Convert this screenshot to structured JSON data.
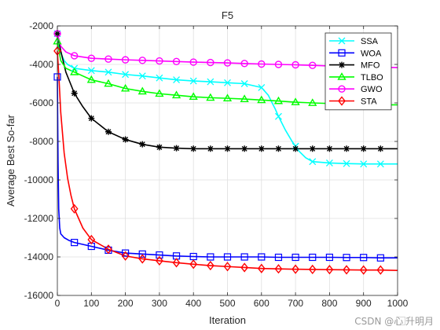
{
  "chart_data": {
    "type": "line",
    "title": "F5",
    "xlabel": "Iteration",
    "ylabel": "Average Best So-far",
    "xlim": [
      0,
      1000
    ],
    "ylim": [
      -16000,
      -2000
    ],
    "xticks": [
      0,
      100,
      200,
      300,
      400,
      500,
      600,
      700,
      800,
      900,
      1000
    ],
    "yticks": [
      -2000,
      -4000,
      -6000,
      -8000,
      -10000,
      -12000,
      -14000,
      -16000
    ],
    "grid": true,
    "legend_position": "top-right",
    "marker_interval": 50,
    "series": [
      {
        "name": "SSA",
        "color": "#00ffff",
        "marker": "x",
        "points": [
          [
            0,
            -2400
          ],
          [
            5,
            -3000
          ],
          [
            10,
            -3400
          ],
          [
            20,
            -3800
          ],
          [
            30,
            -4000
          ],
          [
            50,
            -4200
          ],
          [
            100,
            -4320
          ],
          [
            150,
            -4400
          ],
          [
            200,
            -4520
          ],
          [
            250,
            -4600
          ],
          [
            300,
            -4700
          ],
          [
            350,
            -4800
          ],
          [
            400,
            -4860
          ],
          [
            450,
            -4900
          ],
          [
            500,
            -4950
          ],
          [
            550,
            -5000
          ],
          [
            600,
            -5200
          ],
          [
            620,
            -5600
          ],
          [
            640,
            -6300
          ],
          [
            650,
            -6700
          ],
          [
            670,
            -7400
          ],
          [
            690,
            -8000
          ],
          [
            710,
            -8500
          ],
          [
            730,
            -8850
          ],
          [
            750,
            -9050
          ],
          [
            800,
            -9120
          ],
          [
            850,
            -9150
          ],
          [
            900,
            -9170
          ],
          [
            950,
            -9170
          ],
          [
            1000,
            -9170
          ]
        ]
      },
      {
        "name": "WOA",
        "color": "#0000ff",
        "marker": "square",
        "points": [
          [
            0,
            -4650
          ],
          [
            2,
            -9000
          ],
          [
            4,
            -11500
          ],
          [
            7,
            -12500
          ],
          [
            10,
            -12800
          ],
          [
            20,
            -13000
          ],
          [
            35,
            -13150
          ],
          [
            50,
            -13250
          ],
          [
            100,
            -13450
          ],
          [
            150,
            -13650
          ],
          [
            200,
            -13800
          ],
          [
            250,
            -13850
          ],
          [
            300,
            -13900
          ],
          [
            350,
            -13950
          ],
          [
            400,
            -13980
          ],
          [
            450,
            -14000
          ],
          [
            500,
            -14000
          ],
          [
            550,
            -14000
          ],
          [
            600,
            -14000
          ],
          [
            650,
            -14020
          ],
          [
            700,
            -14020
          ],
          [
            750,
            -14020
          ],
          [
            800,
            -14020
          ],
          [
            850,
            -14030
          ],
          [
            900,
            -14030
          ],
          [
            950,
            -14050
          ],
          [
            1000,
            -14050
          ]
        ]
      },
      {
        "name": "MFO",
        "color": "#000000",
        "marker": "asterisk",
        "points": [
          [
            0,
            -2400
          ],
          [
            10,
            -3300
          ],
          [
            25,
            -4400
          ],
          [
            50,
            -5500
          ],
          [
            75,
            -6200
          ],
          [
            100,
            -6800
          ],
          [
            150,
            -7500
          ],
          [
            200,
            -7900
          ],
          [
            250,
            -8150
          ],
          [
            300,
            -8300
          ],
          [
            350,
            -8350
          ],
          [
            400,
            -8380
          ],
          [
            450,
            -8380
          ],
          [
            500,
            -8380
          ],
          [
            550,
            -8380
          ],
          [
            600,
            -8380
          ],
          [
            650,
            -8380
          ],
          [
            700,
            -8380
          ],
          [
            750,
            -8380
          ],
          [
            800,
            -8380
          ],
          [
            850,
            -8380
          ],
          [
            900,
            -8380
          ],
          [
            950,
            -8380
          ],
          [
            1000,
            -8380
          ]
        ]
      },
      {
        "name": "TLBO",
        "color": "#00ff00",
        "marker": "triangle",
        "points": [
          [
            0,
            -2800
          ],
          [
            10,
            -3800
          ],
          [
            25,
            -4200
          ],
          [
            50,
            -4400
          ],
          [
            100,
            -4800
          ],
          [
            150,
            -5000
          ],
          [
            200,
            -5250
          ],
          [
            250,
            -5400
          ],
          [
            300,
            -5520
          ],
          [
            350,
            -5600
          ],
          [
            400,
            -5680
          ],
          [
            450,
            -5730
          ],
          [
            500,
            -5760
          ],
          [
            550,
            -5800
          ],
          [
            600,
            -5850
          ],
          [
            650,
            -5900
          ],
          [
            700,
            -5960
          ],
          [
            750,
            -6000
          ],
          [
            800,
            -6030
          ],
          [
            850,
            -6060
          ],
          [
            900,
            -6080
          ],
          [
            950,
            -6100
          ],
          [
            1000,
            -6100
          ]
        ]
      },
      {
        "name": "GWO",
        "color": "#ff00ff",
        "marker": "circle",
        "points": [
          [
            0,
            -2400
          ],
          [
            10,
            -3050
          ],
          [
            25,
            -3350
          ],
          [
            50,
            -3550
          ],
          [
            100,
            -3680
          ],
          [
            150,
            -3720
          ],
          [
            200,
            -3760
          ],
          [
            250,
            -3790
          ],
          [
            300,
            -3820
          ],
          [
            350,
            -3850
          ],
          [
            400,
            -3880
          ],
          [
            450,
            -3900
          ],
          [
            500,
            -3920
          ],
          [
            550,
            -3950
          ],
          [
            600,
            -3980
          ],
          [
            650,
            -4000
          ],
          [
            700,
            -4020
          ],
          [
            750,
            -4050
          ],
          [
            800,
            -4080
          ],
          [
            850,
            -4100
          ],
          [
            900,
            -4130
          ],
          [
            950,
            -4150
          ],
          [
            1000,
            -4160
          ]
        ]
      },
      {
        "name": "STA",
        "color": "#ff0000",
        "marker": "diamond",
        "points": [
          [
            0,
            -3300
          ],
          [
            5,
            -4800
          ],
          [
            10,
            -6500
          ],
          [
            20,
            -8600
          ],
          [
            30,
            -9900
          ],
          [
            40,
            -10800
          ],
          [
            50,
            -11500
          ],
          [
            75,
            -12500
          ],
          [
            100,
            -13100
          ],
          [
            150,
            -13600
          ],
          [
            200,
            -13950
          ],
          [
            250,
            -14100
          ],
          [
            300,
            -14200
          ],
          [
            350,
            -14300
          ],
          [
            400,
            -14380
          ],
          [
            450,
            -14450
          ],
          [
            500,
            -14500
          ],
          [
            550,
            -14550
          ],
          [
            600,
            -14600
          ],
          [
            650,
            -14620
          ],
          [
            700,
            -14640
          ],
          [
            750,
            -14650
          ],
          [
            800,
            -14660
          ],
          [
            850,
            -14670
          ],
          [
            900,
            -14680
          ],
          [
            950,
            -14680
          ],
          [
            1000,
            -14700
          ]
        ]
      }
    ]
  },
  "watermark": "CSDN @心 ⃞升明月"
}
